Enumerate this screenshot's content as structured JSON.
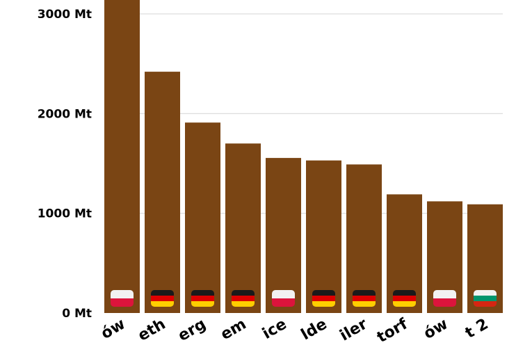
{
  "chart_data": {
    "type": "bar",
    "categories": [
      "ów",
      "eth",
      "erg",
      "em",
      "ice",
      "lde",
      "iler",
      "torf",
      "ów",
      "t 2"
    ],
    "category_flags": [
      "poland",
      "germany",
      "germany",
      "germany",
      "poland",
      "germany",
      "germany",
      "germany",
      "poland",
      "bulgaria"
    ],
    "values": [
      3180,
      2420,
      1910,
      1700,
      1555,
      1530,
      1490,
      1190,
      1120,
      1090
    ],
    "y_ticks": [
      0,
      1000,
      2000,
      3000
    ],
    "y_tick_labels": [
      "0 Mt",
      "1000 Mt",
      "2000 Mt",
      "3000 Mt"
    ],
    "ylim": [
      0,
      3180
    ],
    "grid": true,
    "title": "",
    "xlabel": "",
    "ylabel": "",
    "bar_color": "#7a4514"
  },
  "flags": {
    "poland": [
      "#f2f2f2",
      "#dc143c"
    ],
    "germany": [
      "#1a1a1a",
      "#dd0000",
      "#ffce00"
    ],
    "bulgaria": [
      "#f2f2f2",
      "#00966e",
      "#d62612"
    ]
  }
}
